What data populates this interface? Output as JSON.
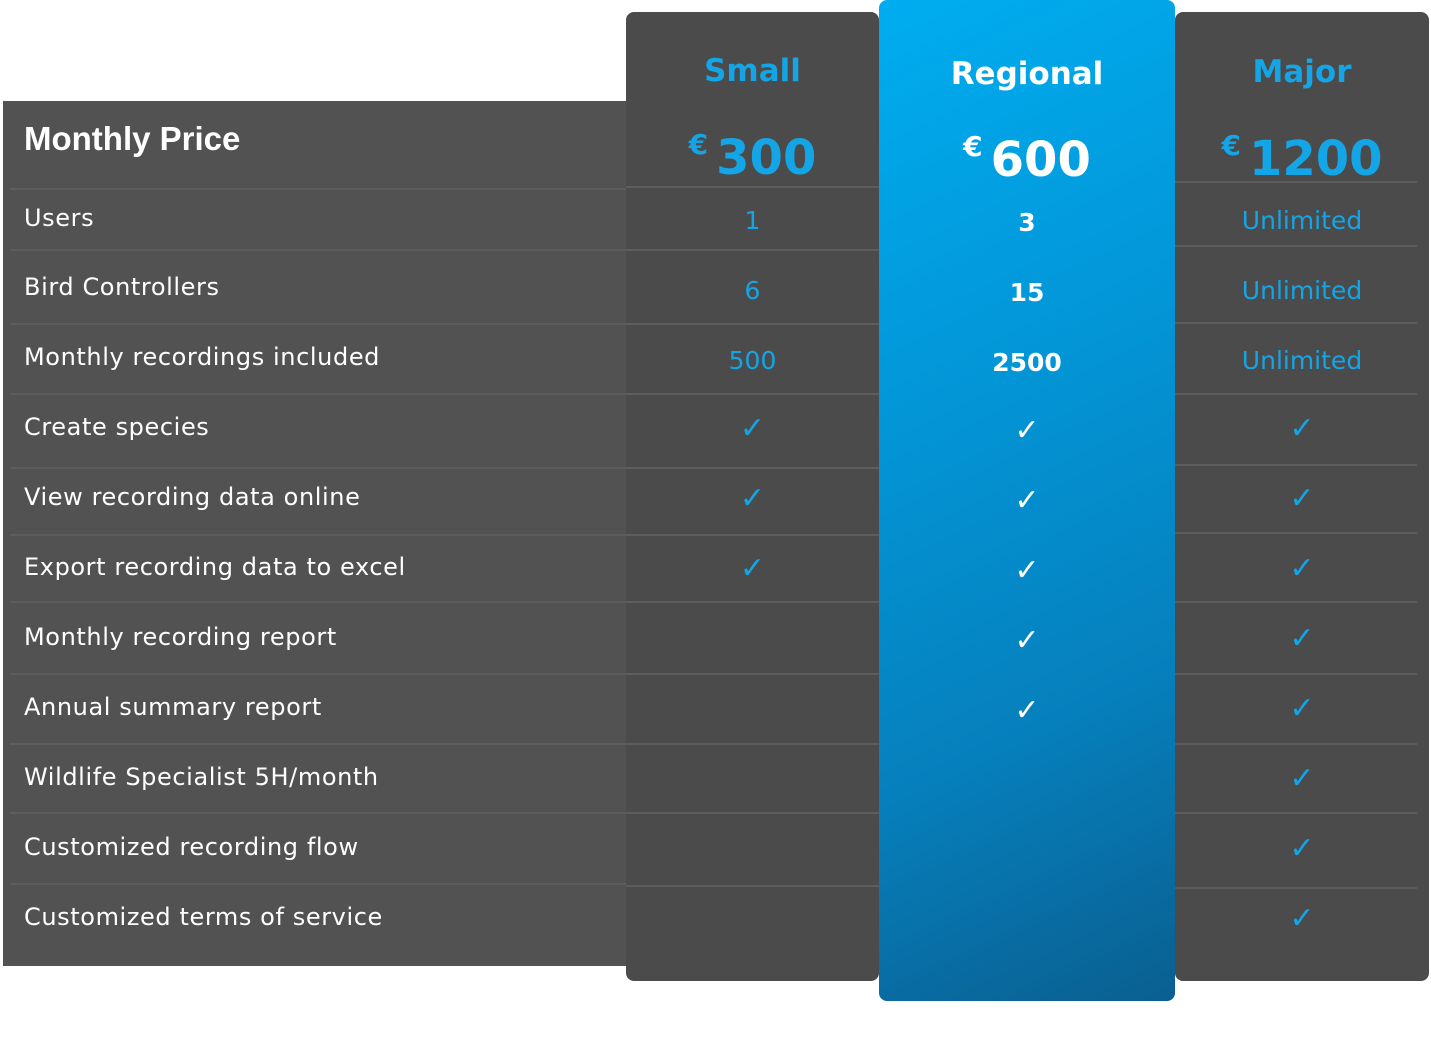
{
  "features_header": "Monthly Price",
  "features": [
    "Users",
    "Bird Controllers",
    "Monthly recordings included",
    "Create species",
    "View recording data online",
    "Export recording data to excel",
    "Monthly recording report",
    "Annual summary report",
    "Wildlife Specialist 5H/month",
    "Customized recording flow",
    "Customized terms of service"
  ],
  "check_symbol": "✓",
  "plans": [
    {
      "name": "Small",
      "currency": "€",
      "price": "300",
      "values": [
        "1",
        "6",
        "500",
        "✓",
        "✓",
        "✓",
        "",
        "",
        "",
        "",
        ""
      ]
    },
    {
      "name": "Regional",
      "currency": "€",
      "price": "600",
      "highlighted": true,
      "values": [
        "3",
        "15",
        "2500",
        "✓",
        "✓",
        "✓",
        "✓",
        "✓",
        "",
        "",
        ""
      ]
    },
    {
      "name": "Major",
      "currency": "€",
      "price": "1200",
      "values": [
        "Unlimited",
        "Unlimited",
        "Unlimited",
        "✓",
        "✓",
        "✓",
        "✓",
        "✓",
        "✓",
        "✓",
        "✓"
      ]
    }
  ],
  "colors": {
    "accent_blue": "#14a5e6",
    "panel_dark": "#525252",
    "column_dark": "#4b4b4b",
    "highlight_gradient_start": "#00adf0",
    "highlight_gradient_end": "#0a5f90",
    "text_white": "#ffffff"
  }
}
